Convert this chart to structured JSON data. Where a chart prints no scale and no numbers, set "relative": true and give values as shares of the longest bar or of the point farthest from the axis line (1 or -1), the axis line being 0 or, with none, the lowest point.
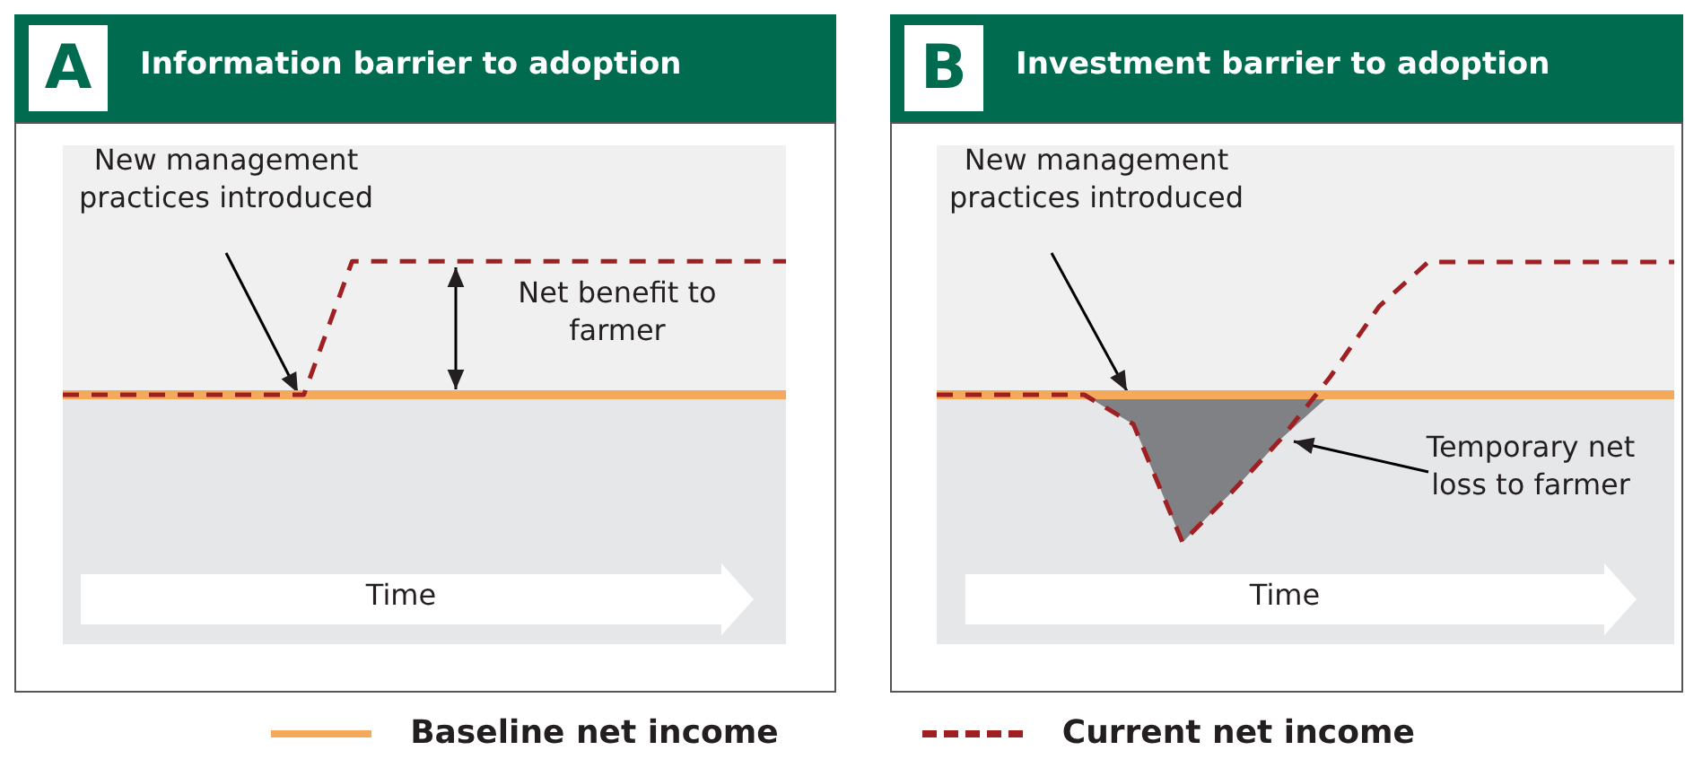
{
  "chart_data": [
    {
      "type": "line",
      "title": "Information barrier to adoption",
      "xlabel": "Time",
      "categories": [
        null,
        null,
        null,
        null,
        null,
        null,
        null,
        null,
        null,
        null,
        null,
        null,
        null,
        null,
        null,
        null
      ],
      "relative": true,
      "legend": "bottom",
      "annotations": [
        "A",
        "New management practices introduced",
        "Net benefit to farmer"
      ],
      "series": [
        {
          "name": "Baseline net income",
          "color": "#f5a95b",
          "line_style": "solid",
          "values": [
            0,
            0,
            0,
            0,
            0,
            0,
            0,
            0,
            0,
            0,
            0,
            0,
            0,
            0,
            0,
            0
          ]
        },
        {
          "name": "Current net income",
          "color": "#a01f23",
          "line_style": "dashed",
          "values": [
            0,
            0,
            0,
            0,
            0,
            0,
            1,
            1,
            1,
            1,
            1,
            1,
            1,
            1,
            1,
            1
          ]
        }
      ]
    },
    {
      "type": "line",
      "title": "Investment barrier to adoption",
      "xlabel": "Time",
      "categories": [
        null,
        null,
        null,
        null,
        null,
        null,
        null,
        null,
        null,
        null,
        null,
        null,
        null,
        null,
        null,
        null
      ],
      "relative": true,
      "annotations": [
        "B",
        "New management practices introduced",
        "Temporary net loss to farmer"
      ],
      "series": [
        {
          "color": "#f5a95b",
          "line_style": "solid",
          "values": [
            0,
            0,
            0,
            0,
            0,
            0,
            0,
            0,
            0,
            0,
            0,
            0,
            0,
            0,
            0,
            0
          ]
        },
        {
          "color": "#a01f23",
          "line_style": "dashed",
          "values": [
            0,
            0,
            0,
            0,
            -0.2,
            -1,
            -0.66,
            -0.3,
            0.12,
            0.6,
            0.9,
            0.9,
            0.9,
            0.9,
            0.9,
            0.9
          ]
        },
        {
          "type": "area",
          "color": "#808184",
          "values": [
            0,
            0,
            0,
            0,
            -0.2,
            -1,
            -0.66,
            -0.3,
            0,
            0,
            0,
            0,
            0,
            0,
            0,
            0
          ]
        }
      ]
    }
  ]
}
